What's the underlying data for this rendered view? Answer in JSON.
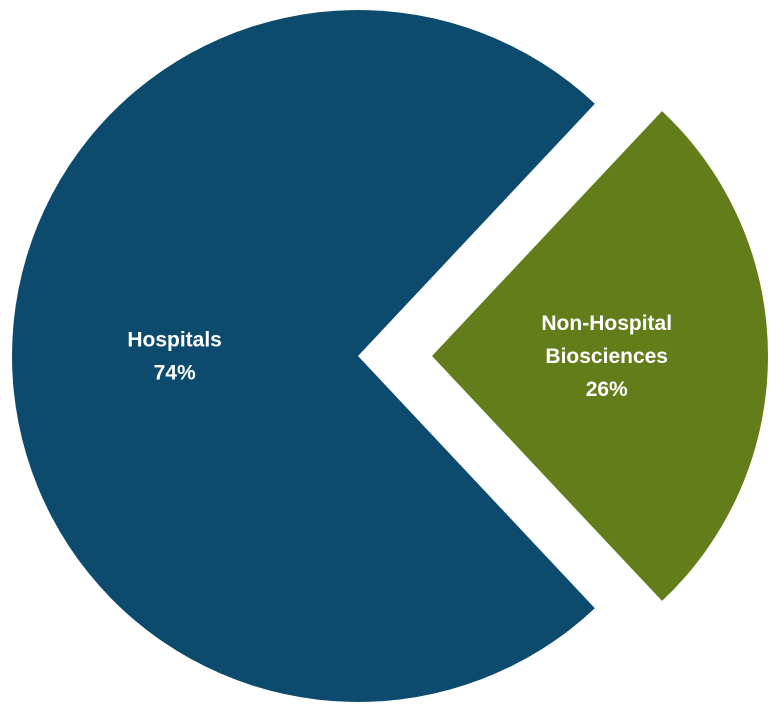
{
  "chart_data": {
    "type": "pie",
    "title": "",
    "slices": [
      {
        "name": "Hospitals",
        "label_lines": [
          "Hospitals"
        ],
        "value": 74,
        "value_label": "74%",
        "color": "#0d4b6e",
        "exploded": false
      },
      {
        "name": "Non-Hospital Biosciences",
        "label_lines": [
          "Non-Hospital",
          "Biosciences"
        ],
        "value": 26,
        "value_label": "26%",
        "color": "#637d1a",
        "exploded": true
      }
    ],
    "legend": "none"
  }
}
